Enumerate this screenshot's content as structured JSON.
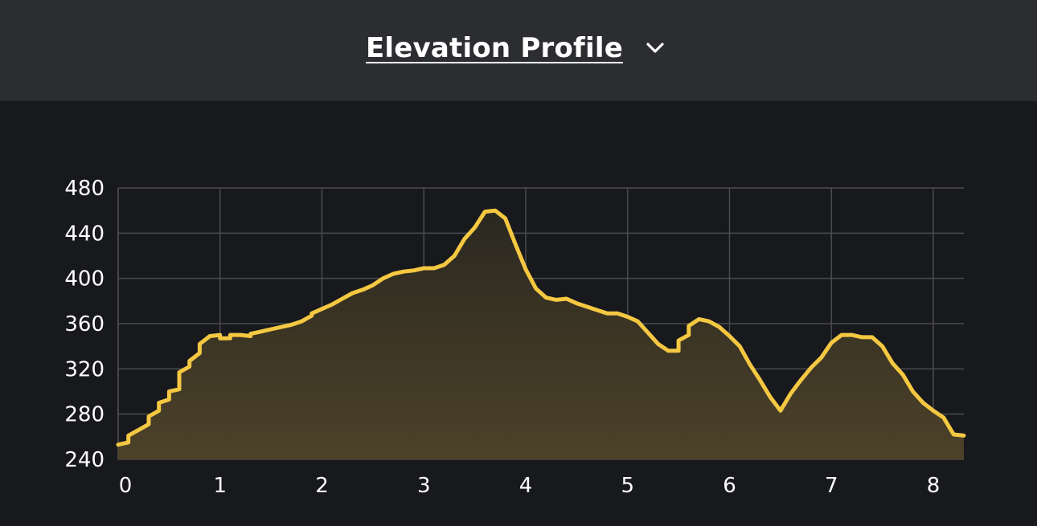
{
  "header": {
    "title": "Elevation Profile"
  },
  "icons": {
    "dropdown": "chevron-down-icon"
  },
  "colors": {
    "line": "#f5c842",
    "fill_top": "#2a2820",
    "fill_bottom": "#4d4229",
    "grid": "#4a4b50",
    "tick_text": "#ffffff"
  },
  "chart_data": {
    "type": "area",
    "title": "",
    "xlabel": "",
    "ylabel": "",
    "xlim": [
      0,
      8.3
    ],
    "ylim": [
      240,
      480
    ],
    "x_ticks": [
      0,
      1,
      2,
      3,
      4,
      5,
      6,
      7,
      8
    ],
    "x_tick_labels": [
      "0",
      "1",
      "2",
      "3",
      "4",
      "5",
      "6",
      "7",
      "8"
    ],
    "y_ticks": [
      240,
      280,
      320,
      360,
      400,
      440,
      480
    ],
    "y_tick_labels": [
      "240",
      "280",
      "320",
      "360",
      "400",
      "440",
      "480"
    ],
    "grid": true,
    "legend": "none",
    "series": [
      {
        "x": [
          0.0,
          0.1,
          0.1,
          0.2,
          0.3,
          0.3,
          0.4,
          0.4,
          0.5,
          0.5,
          0.6,
          0.6,
          0.7,
          0.7,
          0.8,
          0.8,
          0.9,
          1.0,
          1.0,
          1.1,
          1.1,
          1.2,
          1.3,
          1.3,
          1.4,
          1.5,
          1.6,
          1.7,
          1.8,
          1.9,
          1.9,
          2.0,
          2.1,
          2.2,
          2.3,
          2.4,
          2.5,
          2.6,
          2.7,
          2.8,
          2.9,
          3.0,
          3.1,
          3.2,
          3.3,
          3.4,
          3.5,
          3.6,
          3.7,
          3.8,
          3.9,
          4.0,
          4.1,
          4.2,
          4.3,
          4.4,
          4.5,
          4.6,
          4.7,
          4.8,
          4.9,
          5.0,
          5.1,
          5.2,
          5.3,
          5.4,
          5.5,
          5.5,
          5.6,
          5.6,
          5.7,
          5.8,
          5.9,
          6.0,
          6.1,
          6.2,
          6.3,
          6.4,
          6.5,
          6.6,
          6.7,
          6.8,
          6.9,
          7.0,
          7.1,
          7.2,
          7.3,
          7.4,
          7.5,
          7.6,
          7.7,
          7.8,
          7.9,
          8.0,
          8.1,
          8.2,
          8.3
        ],
        "y": [
          253,
          255,
          261,
          266,
          271,
          278,
          283,
          290,
          293,
          300,
          302,
          317,
          322,
          327,
          334,
          342,
          349,
          350,
          347,
          347,
          350,
          350,
          349,
          351,
          353,
          355,
          357,
          359,
          362,
          367,
          369,
          373,
          377,
          382,
          387,
          390,
          394,
          400,
          404,
          406,
          407,
          409,
          409,
          412,
          420,
          435,
          445,
          459,
          460,
          453,
          430,
          408,
          391,
          383,
          381,
          382,
          378,
          375,
          372,
          369,
          369,
          366,
          362,
          352,
          342,
          336,
          336,
          345,
          350,
          358,
          364,
          362,
          357,
          349,
          340,
          324,
          310,
          295,
          283,
          298,
          310,
          321,
          330,
          343,
          350,
          350,
          348,
          348,
          340,
          325,
          315,
          300,
          290,
          283,
          277,
          262,
          261
        ]
      }
    ]
  }
}
